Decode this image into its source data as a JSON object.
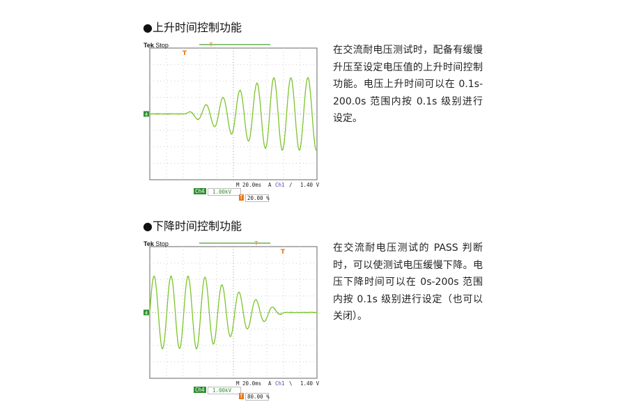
{
  "sections": [
    {
      "title": "●上升时间控制功能",
      "text": "在交流耐电压测试时，配备有缓慢升压至设定电压值的上升时间控制功能。电压上升时间可以在 0.1s-200.0s 范围内按 0.1s 级别进行设定。",
      "scope": {
        "brand": "Tek",
        "state": "Stop",
        "timebase": "M 20.0ms",
        "trigger_mode": "A",
        "trigger_channel": "Ch1",
        "slope": "rising",
        "trigger_level": "1.40 V",
        "channel": "Ch4",
        "scale": "1.00kV",
        "trigger_position": "20.00 %",
        "ground_marker": "4"
      }
    },
    {
      "title": "●下降时间控制功能",
      "text": "在交流耐电压测试的 PASS 判断时，可以使测试电压缓慢下降。电压下降时间可以在 0s-200s 范围内按 0.1s 级别进行设定（也可以关闭）。",
      "scope": {
        "brand": "Tek",
        "state": "Stop",
        "timebase": "M 20.0ms",
        "trigger_mode": "A",
        "trigger_channel": "Ch1",
        "slope": "falling",
        "trigger_level": "1.40 V",
        "channel": "Ch4",
        "scale": "1.00kV",
        "trigger_position": "80.00 %",
        "ground_marker": "4"
      }
    }
  ],
  "colors": {
    "trace": "#7cc42a",
    "trigger": "#e8761a",
    "channel": "#2f8f2f",
    "ch1": "#5a3fa0"
  }
}
